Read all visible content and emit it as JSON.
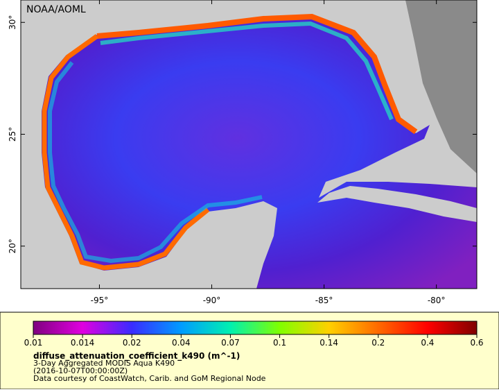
{
  "map": {
    "watermark": "NOAA/AOML",
    "lonlim": [
      -98.5,
      -78.2
    ],
    "latlim": [
      18.1,
      31
    ],
    "lon_ticks": [
      {
        "value": -95,
        "label": "-95°"
      },
      {
        "value": -90,
        "label": "-90°"
      },
      {
        "value": -85,
        "label": "-85°"
      },
      {
        "value": -80,
        "label": "-80°"
      }
    ],
    "lat_ticks": [
      {
        "value": 30,
        "label": "30°"
      },
      {
        "value": 25,
        "label": "25°"
      },
      {
        "value": 20,
        "label": "20°"
      }
    ]
  },
  "colorbar": {
    "ticks": [
      0.01,
      0.014,
      0.02,
      0.04,
      0.07,
      0.1,
      0.14,
      0.2,
      0.4,
      0.6
    ],
    "colors": [
      "#7f007f",
      "#e000e0",
      "#3a2cff",
      "#009cff",
      "#00f0b0",
      "#80ff00",
      "#ffd000",
      "#ff6a00",
      "#ff0000",
      "#800000"
    ]
  },
  "legend": {
    "title": "diffuse_attenuation_coefficient_k490 (m^-1)",
    "lines": [
      "3-Day Aggregated MODIS Aqua K490",
      "(2016-10-07T00:00:00Z)",
      "Data courtesy of CoastWatch, Carib. and GoM Regional Node"
    ]
  }
}
